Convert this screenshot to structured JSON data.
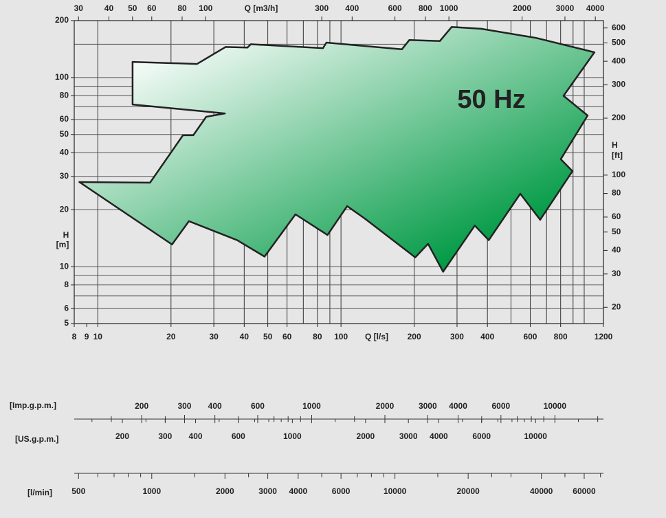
{
  "chart_data": {
    "type": "envelope",
    "annotation": "50 Hz",
    "fill_colors": [
      "#ffffff",
      "#009a44"
    ],
    "log_scale": true,
    "grid": true,
    "x": [
      8.4,
      16.4,
      22.4,
      24.7,
      27.9,
      33.3,
      13.9,
      13.9,
      25.6,
      33.5,
      41.2,
      42.6,
      84.3,
      87.1,
      178,
      191,
      255,
      285,
      377,
      634,
      1102,
      822,
      1033,
      801,
      895,
      659,
      546,
      405,
      355,
      263,
      228,
      202,
      125,
      106,
      88,
      65,
      48.5,
      37.4,
      23.7,
      20.2
    ],
    "values": [
      28,
      27.8,
      49.5,
      49.5,
      62,
      64.6,
      72,
      121,
      118,
      145,
      144,
      150,
      143,
      153,
      141,
      158,
      156,
      185,
      181,
      162,
      136,
      80,
      63,
      37,
      32,
      17.7,
      24.3,
      13.8,
      16.5,
      9.4,
      13.2,
      11.2,
      18,
      20.9,
      14.7,
      18.9,
      11.3,
      13.8,
      17.4,
      13.1
    ],
    "xlim": [
      8,
      1200
    ],
    "ylim": [
      5,
      200
    ],
    "xlabel": "Q [l/s]",
    "ylabel": "H",
    "ylabel_unit": "[m]",
    "xticks": [
      8,
      9,
      10,
      20,
      30,
      40,
      50,
      60,
      80,
      100,
      200,
      300,
      400,
      600,
      800,
      1200
    ],
    "yticks": [
      5,
      6,
      8,
      10,
      20,
      30,
      40,
      50,
      60,
      80,
      100,
      200
    ],
    "xgrid": [
      10,
      20,
      30,
      40,
      50,
      60,
      70,
      80,
      90,
      100,
      200,
      300,
      400,
      500,
      600,
      700,
      800,
      900,
      1000
    ],
    "ygrid": [
      6,
      7,
      8,
      9,
      10,
      20,
      30,
      40,
      50,
      60,
      70,
      80,
      90,
      100,
      150
    ],
    "x2label": "Q [m3/h]",
    "x2lim": [
      28.8,
      4320
    ],
    "x2ticks": [
      30,
      40,
      50,
      60,
      80,
      100,
      300,
      400,
      600,
      800,
      1000,
      2000,
      3000,
      4000
    ],
    "y2label": "H",
    "y2label_unit": "[ft]",
    "y2lim": [
      16.4,
      656.2
    ],
    "y2ticks": [
      20,
      30,
      40,
      50,
      60,
      80,
      100,
      200,
      300,
      400,
      500,
      600
    ],
    "scales": [
      {
        "label": "[Imp.g.p.m.]",
        "lim": [
          105.6,
          15837
        ],
        "ticks": [
          200,
          300,
          400,
          600,
          1000,
          2000,
          3000,
          4000,
          6000,
          10000
        ],
        "minor": [
          150,
          250,
          500,
          700,
          800,
          900,
          1500,
          5000,
          7000,
          8000,
          9000,
          15000
        ]
      },
      {
        "label": "[US.g.p.m.]",
        "lim": [
          126.8,
          19020
        ],
        "ticks": [
          200,
          300,
          400,
          600,
          1000,
          2000,
          3000,
          4000,
          6000,
          10000
        ],
        "minor": [
          150,
          250,
          500,
          700,
          800,
          900,
          1500,
          5000,
          7000,
          8000,
          9000,
          15000
        ]
      },
      {
        "label": "[l/min]",
        "lim": [
          480,
          72000
        ],
        "ticks": [
          500,
          1000,
          2000,
          3000,
          4000,
          6000,
          10000,
          20000,
          40000,
          60000
        ],
        "minor": [
          600,
          700,
          800,
          900,
          1500,
          2500,
          5000,
          7000,
          8000,
          9000,
          15000,
          25000,
          30000,
          50000,
          70000
        ]
      }
    ]
  }
}
